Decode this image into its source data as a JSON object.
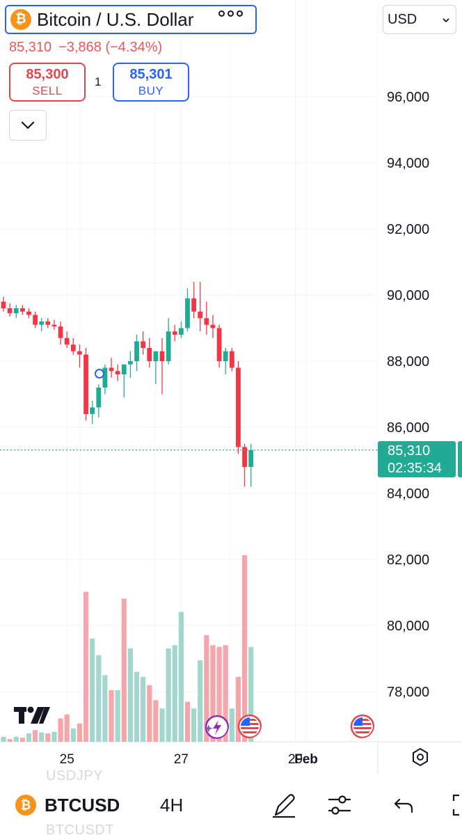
{
  "header": {
    "symbol_icon": "bitcoin-icon",
    "symbol_icon_glyph": "₿",
    "title": "Bitcoin / U.S. Dollar",
    "price": "85,310",
    "change": "−3,868",
    "change_pct": "(−4.34%)",
    "sell_price": "85,300",
    "sell_label": "SELL",
    "spread": "1",
    "buy_price": "85,301",
    "buy_label": "BUY",
    "currency": "USD"
  },
  "colors": {
    "up": "#22ab94",
    "down": "#f23645",
    "up_volume": "#a3d6cd",
    "down_volume": "#f5a6ab",
    "accent": "#2962ff",
    "price_line": "#22ab94"
  },
  "last_price_tag": {
    "price": "85,310",
    "countdown": "02:35:34"
  },
  "chart_data": {
    "type": "candlestick",
    "ylim": [
      76800,
      98800
    ],
    "y_ticks": [
      {
        "value": 96000,
        "label": "96,000"
      },
      {
        "value": 94000,
        "label": "94,000"
      },
      {
        "value": 92000,
        "label": "92,000"
      },
      {
        "value": 90000,
        "label": "90,000"
      },
      {
        "value": 88000,
        "label": "88,000"
      },
      {
        "value": 86000,
        "label": "86,000"
      },
      {
        "value": 84000,
        "label": "84,000"
      },
      {
        "value": 82000,
        "label": "82,000"
      },
      {
        "value": 80000,
        "label": "80,000"
      },
      {
        "value": 78000,
        "label": "78,000"
      }
    ],
    "x_ticks": [
      {
        "index": 10,
        "label": "25",
        "bold": false
      },
      {
        "index": 28,
        "label": "27",
        "bold": false
      },
      {
        "index": 46,
        "label": "29",
        "bold": false
      },
      {
        "index": 73,
        "label": "Feb",
        "bold": true
      }
    ],
    "last_price": 85310,
    "candles": [
      {
        "o": 89800,
        "h": 89950,
        "l": 89500,
        "c": 89600
      },
      {
        "o": 89600,
        "h": 89750,
        "l": 89350,
        "c": 89450
      },
      {
        "o": 89450,
        "h": 89700,
        "l": 89300,
        "c": 89600
      },
      {
        "o": 89600,
        "h": 89700,
        "l": 89400,
        "c": 89500
      },
      {
        "o": 89500,
        "h": 89600,
        "l": 89300,
        "c": 89400
      },
      {
        "o": 89400,
        "h": 89500,
        "l": 89000,
        "c": 89100
      },
      {
        "o": 89100,
        "h": 89300,
        "l": 88900,
        "c": 89200
      },
      {
        "o": 89200,
        "h": 89300,
        "l": 89000,
        "c": 89100
      },
      {
        "o": 89100,
        "h": 89250,
        "l": 88950,
        "c": 89050
      },
      {
        "o": 89050,
        "h": 89200,
        "l": 88500,
        "c": 88700
      },
      {
        "o": 88700,
        "h": 88900,
        "l": 88400,
        "c": 88500
      },
      {
        "o": 88500,
        "h": 88700,
        "l": 88200,
        "c": 88300
      },
      {
        "o": 88300,
        "h": 88500,
        "l": 87800,
        "c": 88200
      },
      {
        "o": 88200,
        "h": 88400,
        "l": 86200,
        "c": 86400
      },
      {
        "o": 86400,
        "h": 86800,
        "l": 86100,
        "c": 86600
      },
      {
        "o": 86600,
        "h": 87300,
        "l": 86300,
        "c": 87200
      },
      {
        "o": 87200,
        "h": 87900,
        "l": 87000,
        "c": 87800
      },
      {
        "o": 87800,
        "h": 88100,
        "l": 87500,
        "c": 87700
      },
      {
        "o": 87700,
        "h": 87900,
        "l": 87400,
        "c": 87600
      },
      {
        "o": 87600,
        "h": 87800,
        "l": 86900,
        "c": 87900
      },
      {
        "o": 87900,
        "h": 88300,
        "l": 87500,
        "c": 88000
      },
      {
        "o": 88000,
        "h": 88800,
        "l": 87700,
        "c": 88600
      },
      {
        "o": 88600,
        "h": 88900,
        "l": 88200,
        "c": 88400
      },
      {
        "o": 88400,
        "h": 88700,
        "l": 87800,
        "c": 88000
      },
      {
        "o": 88000,
        "h": 88200,
        "l": 87300,
        "c": 88300
      },
      {
        "o": 88300,
        "h": 88700,
        "l": 87000,
        "c": 88000
      },
      {
        "o": 88000,
        "h": 89300,
        "l": 87900,
        "c": 88900
      },
      {
        "o": 88900,
        "h": 89100,
        "l": 88600,
        "c": 88800
      },
      {
        "o": 88800,
        "h": 89200,
        "l": 88700,
        "c": 89000
      },
      {
        "o": 89000,
        "h": 90200,
        "l": 88900,
        "c": 89900
      },
      {
        "o": 89900,
        "h": 90400,
        "l": 89300,
        "c": 89500
      },
      {
        "o": 89500,
        "h": 90400,
        "l": 88900,
        "c": 89300
      },
      {
        "o": 89300,
        "h": 89800,
        "l": 88800,
        "c": 89100
      },
      {
        "o": 89100,
        "h": 89400,
        "l": 88700,
        "c": 89000
      },
      {
        "o": 89000,
        "h": 89100,
        "l": 87800,
        "c": 88000
      },
      {
        "o": 88000,
        "h": 88400,
        "l": 87600,
        "c": 88300
      },
      {
        "o": 88300,
        "h": 88400,
        "l": 87700,
        "c": 87800
      },
      {
        "o": 87800,
        "h": 88000,
        "l": 85200,
        "c": 85400
      },
      {
        "o": 85400,
        "h": 85500,
        "l": 84200,
        "c": 84800
      },
      {
        "o": 84800,
        "h": 85500,
        "l": 84200,
        "c": 85310
      }
    ],
    "volumes": [
      {
        "v": 15,
        "up": true
      },
      {
        "v": 8,
        "up": false
      },
      {
        "v": 15,
        "up": true
      },
      {
        "v": 12,
        "up": false
      },
      {
        "v": 25,
        "up": true
      },
      {
        "v": 35,
        "up": false
      },
      {
        "v": 28,
        "up": true
      },
      {
        "v": 25,
        "up": false
      },
      {
        "v": 30,
        "up": true
      },
      {
        "v": 70,
        "up": false
      },
      {
        "v": 82,
        "up": false
      },
      {
        "v": 40,
        "up": true
      },
      {
        "v": 55,
        "up": false
      },
      {
        "v": 450,
        "up": false
      },
      {
        "v": 310,
        "up": true
      },
      {
        "v": 260,
        "up": true
      },
      {
        "v": 200,
        "up": true
      },
      {
        "v": 155,
        "up": false
      },
      {
        "v": 155,
        "up": true
      },
      {
        "v": 430,
        "up": false
      },
      {
        "v": 280,
        "up": true
      },
      {
        "v": 210,
        "up": true
      },
      {
        "v": 195,
        "up": true
      },
      {
        "v": 170,
        "up": false
      },
      {
        "v": 125,
        "up": false
      },
      {
        "v": 100,
        "up": true
      },
      {
        "v": 280,
        "up": true
      },
      {
        "v": 290,
        "up": true
      },
      {
        "v": 390,
        "up": true
      },
      {
        "v": 120,
        "up": false
      },
      {
        "v": 100,
        "up": true
      },
      {
        "v": 245,
        "up": true
      },
      {
        "v": 320,
        "up": false
      },
      {
        "v": 290,
        "up": false
      },
      {
        "v": 285,
        "up": false
      },
      {
        "v": 290,
        "up": false
      },
      {
        "v": 100,
        "up": true
      },
      {
        "v": 195,
        "up": false
      },
      {
        "v": 560,
        "up": false
      },
      {
        "v": 285,
        "up": true
      }
    ]
  },
  "bottom_bar": {
    "symbol_icon_glyph": "₿",
    "symbol": "BTCUSD",
    "interval": "4H",
    "ghost_above": "USDJPY",
    "ghost_below": "BTCUSDT",
    "icons": [
      "pencil-icon",
      "sliders-icon",
      "undo-icon",
      "fullscreen-icon"
    ]
  },
  "axis_controls": {
    "settings_icon": "gear-icon"
  }
}
